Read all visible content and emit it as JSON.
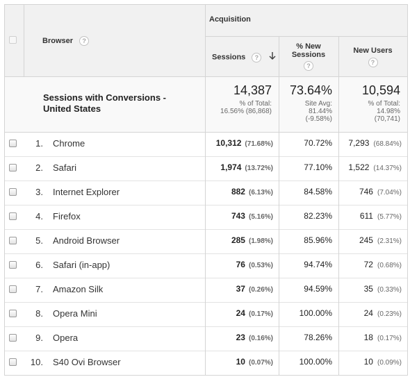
{
  "header": {
    "browser_label": "Browser",
    "group_label": "Acquisition",
    "sessions_label": "Sessions",
    "sort_icon": "arrow-down-icon",
    "new_sessions_label_line1": "% New",
    "new_sessions_label_line2": "Sessions",
    "new_users_label": "New Users",
    "help_glyph": "?"
  },
  "summary": {
    "title_line1": "Sessions with Conversions -",
    "title_line2": "United States",
    "sessions_value": "14,387",
    "sessions_sub1": "% of Total:",
    "sessions_sub2": "16.56% (86,868)",
    "new_sessions_value": "73.64%",
    "new_sessions_sub1": "Site Avg:",
    "new_sessions_sub2": "81.44%",
    "new_sessions_sub3": "(-9.58%)",
    "new_users_value": "10,594",
    "new_users_sub1": "% of Total:",
    "new_users_sub2": "14.98%",
    "new_users_sub3": "(70,741)"
  },
  "rows": [
    {
      "index": "1.",
      "browser": "Chrome",
      "sessions": "10,312",
      "sessions_pct": "(71.68%)",
      "new_sessions": "70.72%",
      "new_users": "7,293",
      "new_users_pct": "(68.84%)"
    },
    {
      "index": "2.",
      "browser": "Safari",
      "sessions": "1,974",
      "sessions_pct": "(13.72%)",
      "new_sessions": "77.10%",
      "new_users": "1,522",
      "new_users_pct": "(14.37%)"
    },
    {
      "index": "3.",
      "browser": "Internet Explorer",
      "sessions": "882",
      "sessions_pct": "(6.13%)",
      "new_sessions": "84.58%",
      "new_users": "746",
      "new_users_pct": "(7.04%)"
    },
    {
      "index": "4.",
      "browser": "Firefox",
      "sessions": "743",
      "sessions_pct": "(5.16%)",
      "new_sessions": "82.23%",
      "new_users": "611",
      "new_users_pct": "(5.77%)"
    },
    {
      "index": "5.",
      "browser": "Android Browser",
      "sessions": "285",
      "sessions_pct": "(1.98%)",
      "new_sessions": "85.96%",
      "new_users": "245",
      "new_users_pct": "(2.31%)"
    },
    {
      "index": "6.",
      "browser": "Safari (in-app)",
      "sessions": "76",
      "sessions_pct": "(0.53%)",
      "new_sessions": "94.74%",
      "new_users": "72",
      "new_users_pct": "(0.68%)"
    },
    {
      "index": "7.",
      "browser": "Amazon Silk",
      "sessions": "37",
      "sessions_pct": "(0.26%)",
      "new_sessions": "94.59%",
      "new_users": "35",
      "new_users_pct": "(0.33%)"
    },
    {
      "index": "8.",
      "browser": "Opera Mini",
      "sessions": "24",
      "sessions_pct": "(0.17%)",
      "new_sessions": "100.00%",
      "new_users": "24",
      "new_users_pct": "(0.23%)"
    },
    {
      "index": "9.",
      "browser": "Opera",
      "sessions": "23",
      "sessions_pct": "(0.16%)",
      "new_sessions": "78.26%",
      "new_users": "18",
      "new_users_pct": "(0.17%)"
    },
    {
      "index": "10.",
      "browser": "S40 Ovi Browser",
      "sessions": "10",
      "sessions_pct": "(0.07%)",
      "new_sessions": "100.00%",
      "new_users": "10",
      "new_users_pct": "(0.09%)"
    }
  ]
}
